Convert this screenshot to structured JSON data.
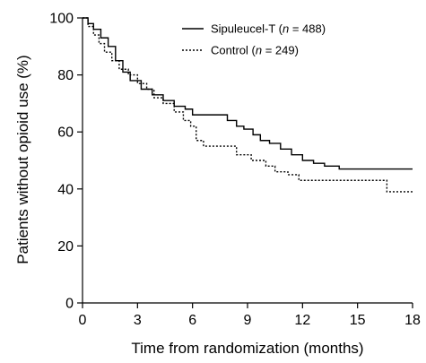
{
  "chart_data": {
    "type": "line",
    "xlabel": "Time from randomization (months)",
    "ylabel": "Patients without opioid use (%)",
    "xlim": [
      0,
      18
    ],
    "ylim": [
      0,
      100
    ],
    "xticks": [
      0,
      3,
      6,
      9,
      12,
      15,
      18
    ],
    "yticks": [
      0,
      20,
      40,
      60,
      80,
      100
    ],
    "grid": false,
    "legend_position": "top-right",
    "series": [
      {
        "name": "Sipuleucel-T",
        "legend_prefix": "Sipuleucel-T (",
        "legend_italic": "n",
        "legend_suffix": " = 488)",
        "line_style": "solid",
        "color": "#000000",
        "points": [
          [
            0,
            100
          ],
          [
            0.3,
            98
          ],
          [
            0.6,
            96
          ],
          [
            1,
            93
          ],
          [
            1.4,
            90
          ],
          [
            1.8,
            85
          ],
          [
            2.2,
            81
          ],
          [
            2.6,
            78
          ],
          [
            3.2,
            75
          ],
          [
            3.8,
            73
          ],
          [
            4.4,
            71
          ],
          [
            5,
            69
          ],
          [
            5.6,
            68
          ],
          [
            6,
            66
          ],
          [
            6.5,
            66
          ],
          [
            7.5,
            66
          ],
          [
            7.9,
            64
          ],
          [
            8.4,
            62
          ],
          [
            8.8,
            61
          ],
          [
            9.3,
            59
          ],
          [
            9.7,
            57
          ],
          [
            10.2,
            56
          ],
          [
            10.8,
            54
          ],
          [
            11.4,
            52
          ],
          [
            12,
            50
          ],
          [
            12.6,
            49
          ],
          [
            13.2,
            48
          ],
          [
            14,
            47
          ],
          [
            14.8,
            47
          ],
          [
            16,
            47
          ],
          [
            18,
            47
          ]
        ]
      },
      {
        "name": "Control",
        "legend_prefix": "Control (",
        "legend_italic": "n",
        "legend_suffix": " = 249)",
        "line_style": "dotted",
        "color": "#000000",
        "points": [
          [
            0,
            100
          ],
          [
            0.3,
            97
          ],
          [
            0.6,
            94
          ],
          [
            0.9,
            91
          ],
          [
            1.2,
            88
          ],
          [
            1.6,
            85
          ],
          [
            2,
            82
          ],
          [
            2.5,
            80
          ],
          [
            3,
            77
          ],
          [
            3.5,
            75
          ],
          [
            3.9,
            72
          ],
          [
            4.4,
            70
          ],
          [
            5,
            67
          ],
          [
            5.5,
            64
          ],
          [
            5.9,
            62
          ],
          [
            6.2,
            57
          ],
          [
            6.6,
            55
          ],
          [
            7.5,
            55
          ],
          [
            8.4,
            52
          ],
          [
            9.2,
            50
          ],
          [
            10,
            48
          ],
          [
            10.5,
            46
          ],
          [
            11.2,
            45
          ],
          [
            11.8,
            43
          ],
          [
            12.5,
            43
          ],
          [
            14,
            43
          ],
          [
            15.5,
            43
          ],
          [
            16.6,
            43
          ],
          [
            16.6,
            39
          ],
          [
            18,
            39
          ]
        ]
      }
    ]
  }
}
